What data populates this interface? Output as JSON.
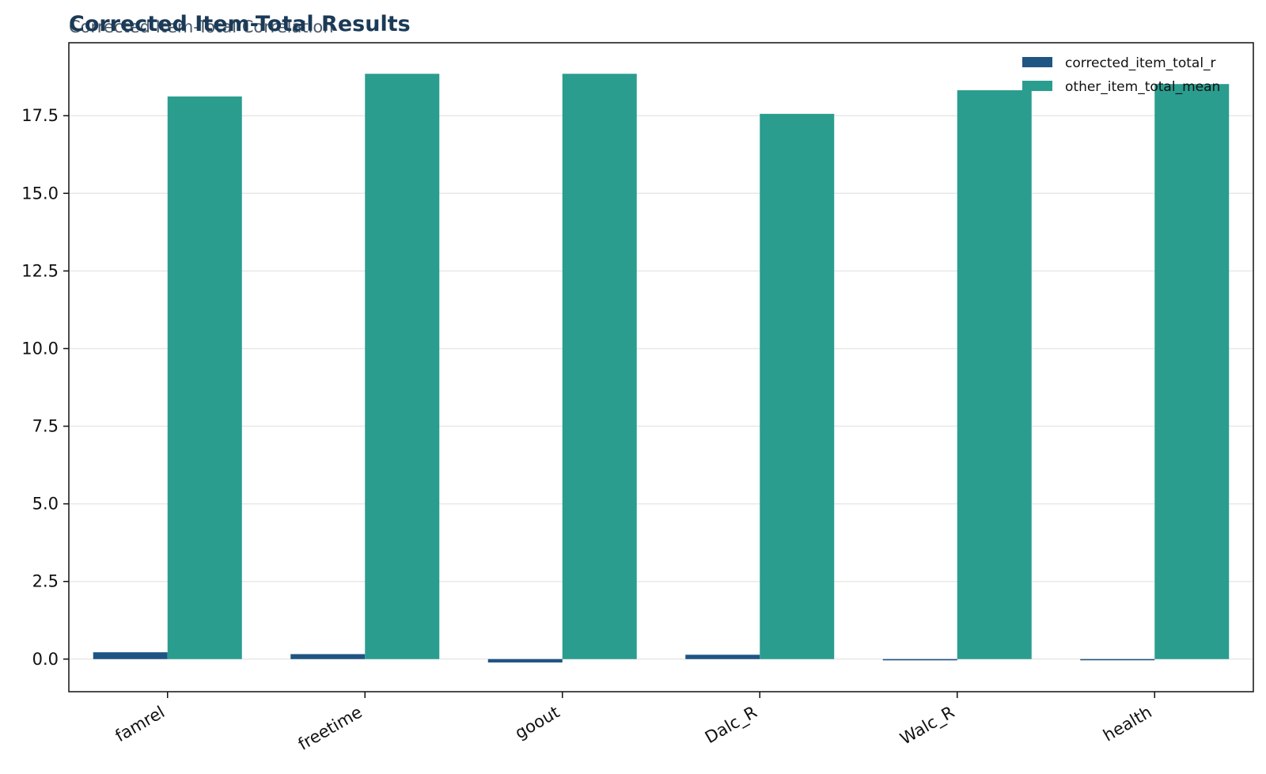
{
  "chart_data": {
    "type": "bar",
    "title": "Corrected Item-Total Results",
    "subtitle": "Corrected Item-Total Correlation",
    "xlabel": "",
    "ylabel": "",
    "categories": [
      "famrel",
      "freetime",
      "goout",
      "Dalc_R",
      "Walc_R",
      "health"
    ],
    "series": [
      {
        "name": "corrected_item_total_r",
        "color": "#1f5583",
        "values": [
          0.22,
          0.16,
          -0.11,
          0.14,
          -0.04,
          -0.02
        ]
      },
      {
        "name": "other_item_total_mean",
        "color": "#2a9d8f",
        "values": [
          18.12,
          18.85,
          18.85,
          17.56,
          18.32,
          18.52
        ]
      }
    ],
    "ylim": [
      -1.05,
      19.85
    ],
    "yticks": [
      "0.0",
      "2.5",
      "5.0",
      "7.5",
      "10.0",
      "12.5",
      "15.0",
      "17.5"
    ],
    "ytick_values": [
      0,
      2.5,
      5,
      7.5,
      10,
      12.5,
      15,
      17.5
    ],
    "grid": "horizontal",
    "legend_position": "top-right"
  }
}
